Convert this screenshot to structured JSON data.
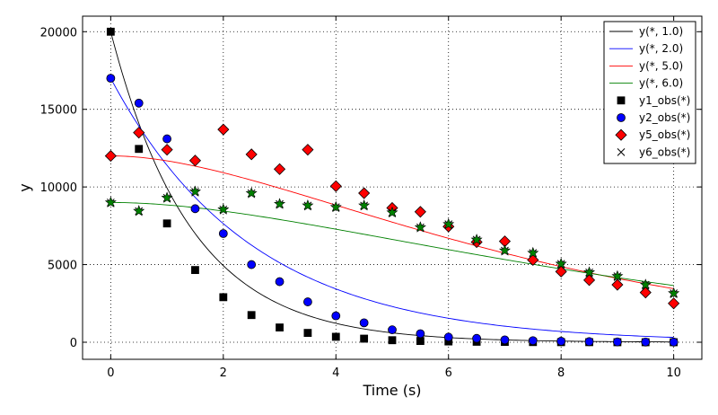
{
  "chart_data": {
    "type": "line",
    "xlabel": "Time (s)",
    "ylabel": "y",
    "xlim": [
      -0.5,
      10.5
    ],
    "ylim": [
      -1100,
      21000
    ],
    "xticks": [
      0,
      2,
      4,
      6,
      8,
      10
    ],
    "yticks": [
      0,
      5000,
      10000,
      15000,
      20000
    ],
    "grid": true,
    "legend_position": "top-right",
    "model_series": [
      {
        "name": "y(*, 1.0)",
        "color": "#000000",
        "A": 20000,
        "k": 0.7,
        "kind": "exp"
      },
      {
        "name": "y(*, 2.0)",
        "color": "#0000ff",
        "A": 17000,
        "k": 0.4,
        "kind": "exp"
      },
      {
        "name": "y(*, 5.0)",
        "color": "#ff0000",
        "B": 12000,
        "k": 0.25,
        "kind": "rise-decay"
      },
      {
        "name": "y(*, 6.0)",
        "color": "#008000",
        "B": 9000,
        "k": 0.2,
        "kind": "rise-decay"
      }
    ],
    "observed_series": [
      {
        "name": "y1_obs(*)",
        "marker": "square",
        "color": "#000000",
        "x": [
          0,
          0.5,
          1,
          1.5,
          2,
          2.5,
          3,
          3.5,
          4,
          4.5,
          5,
          5.5,
          6,
          6.5,
          7,
          7.5,
          8,
          8.5,
          9,
          9.5,
          10
        ],
        "y": [
          20000,
          12450,
          7650,
          4650,
          2900,
          1750,
          950,
          600,
          350,
          230,
          130,
          80,
          50,
          30,
          20,
          10,
          5,
          5,
          0,
          0,
          0
        ]
      },
      {
        "name": "y2_obs(*)",
        "marker": "circle",
        "color": "#0000ff",
        "x": [
          0,
          0.5,
          1,
          1.5,
          2,
          2.5,
          3,
          3.5,
          4,
          4.5,
          5,
          5.5,
          6,
          6.5,
          7,
          7.5,
          8,
          8.5,
          9,
          9.5,
          10
        ],
        "y": [
          17000,
          15400,
          13100,
          8600,
          7000,
          5000,
          3900,
          2600,
          1700,
          1250,
          800,
          550,
          330,
          250,
          150,
          100,
          60,
          40,
          20,
          15,
          10
        ]
      },
      {
        "name": "y5_obs(*)",
        "marker": "diamond",
        "color": "#ff0000",
        "x": [
          0,
          0.5,
          1,
          1.5,
          2,
          2.5,
          3,
          3.5,
          4,
          4.5,
          5,
          5.5,
          6,
          6.5,
          7,
          7.5,
          8,
          8.5,
          9,
          9.5,
          10
        ],
        "y": [
          12000,
          13500,
          12400,
          11700,
          13700,
          12100,
          11150,
          12400,
          10050,
          9600,
          8650,
          8400,
          7450,
          6450,
          6500,
          5300,
          4550,
          4000,
          3700,
          3200,
          2500
        ]
      },
      {
        "name": "y6_obs(*)",
        "marker": "x",
        "color": "#000000",
        "x": [
          0,
          0.5,
          1,
          1.5,
          2,
          2.5,
          3,
          3.5,
          4,
          4.5,
          5,
          5.5,
          6,
          6.5,
          7,
          7.5,
          8,
          8.5,
          9,
          9.5,
          10
        ],
        "y": [
          9000,
          8450,
          9300,
          9700,
          8550,
          9600,
          8900,
          8800,
          8700,
          8800,
          8350,
          7400,
          7600,
          6600,
          5900,
          5750,
          5050,
          4500,
          4250,
          3700,
          3150
        ]
      }
    ],
    "overlay_stars": {
      "color": "#008000",
      "x": [
        0,
        0.5,
        1,
        1.5,
        2,
        2.5,
        3,
        3.5,
        4,
        4.5,
        5,
        5.5,
        6,
        6.5,
        7,
        7.5,
        8,
        8.5,
        9,
        9.5,
        10
      ],
      "y": [
        9000,
        8450,
        9300,
        9700,
        8550,
        9600,
        8900,
        8800,
        8700,
        8800,
        8350,
        7400,
        7600,
        6600,
        5900,
        5750,
        5050,
        4500,
        4250,
        3700,
        3150
      ]
    }
  }
}
